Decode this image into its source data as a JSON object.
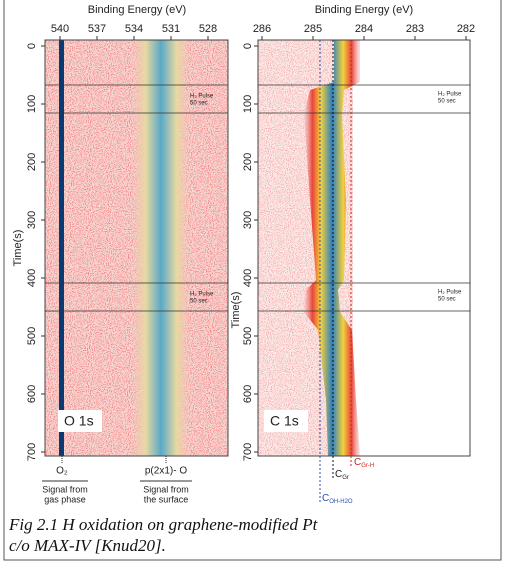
{
  "figure": {
    "panels": [
      {
        "x_axis_label": "Binding Energy (eV)",
        "x_ticks": [
          540,
          537,
          534,
          531,
          528
        ],
        "y_axis_label": "Time(s)",
        "y_ticks": [
          0,
          100,
          200,
          300,
          400,
          500,
          600,
          700
        ],
        "pulse_labels": [
          {
            "line1": "H₂ Pulse",
            "line2": "50 sec"
          },
          {
            "line1": "H₂ Pulse",
            "line2": "50 sec"
          }
        ],
        "panel_label": "O 1s",
        "peak_labels": [
          "O₂",
          "p(2x1)- O"
        ],
        "signal_labels": [
          [
            "Signal from",
            "gas phase"
          ],
          [
            "Signal from",
            "the surface"
          ]
        ]
      },
      {
        "x_axis_label": "Binding Energy (eV)",
        "x_ticks": [
          286,
          285,
          284,
          283,
          282
        ],
        "y_axis_label": "Time(s)",
        "y_ticks": [
          0,
          100,
          200,
          300,
          400,
          500,
          600,
          700
        ],
        "pulse_labels": [
          {
            "line1": "H₂ Pulse",
            "line2": "50 sec"
          },
          {
            "line1": "H₂ Pulse",
            "line2": "50 sec"
          }
        ],
        "panel_label": "C 1s",
        "peak_labels": [
          {
            "main": "C",
            "sub": "Gr-H"
          },
          {
            "main": "C",
            "sub": "Gr"
          },
          {
            "main": "C",
            "sub": "OH-H2O"
          }
        ]
      }
    ],
    "caption": [
      "Fig 2.1 H oxidation on graphene-modified Pt",
      "c/o MAX-IV [Knud20]."
    ]
  }
}
